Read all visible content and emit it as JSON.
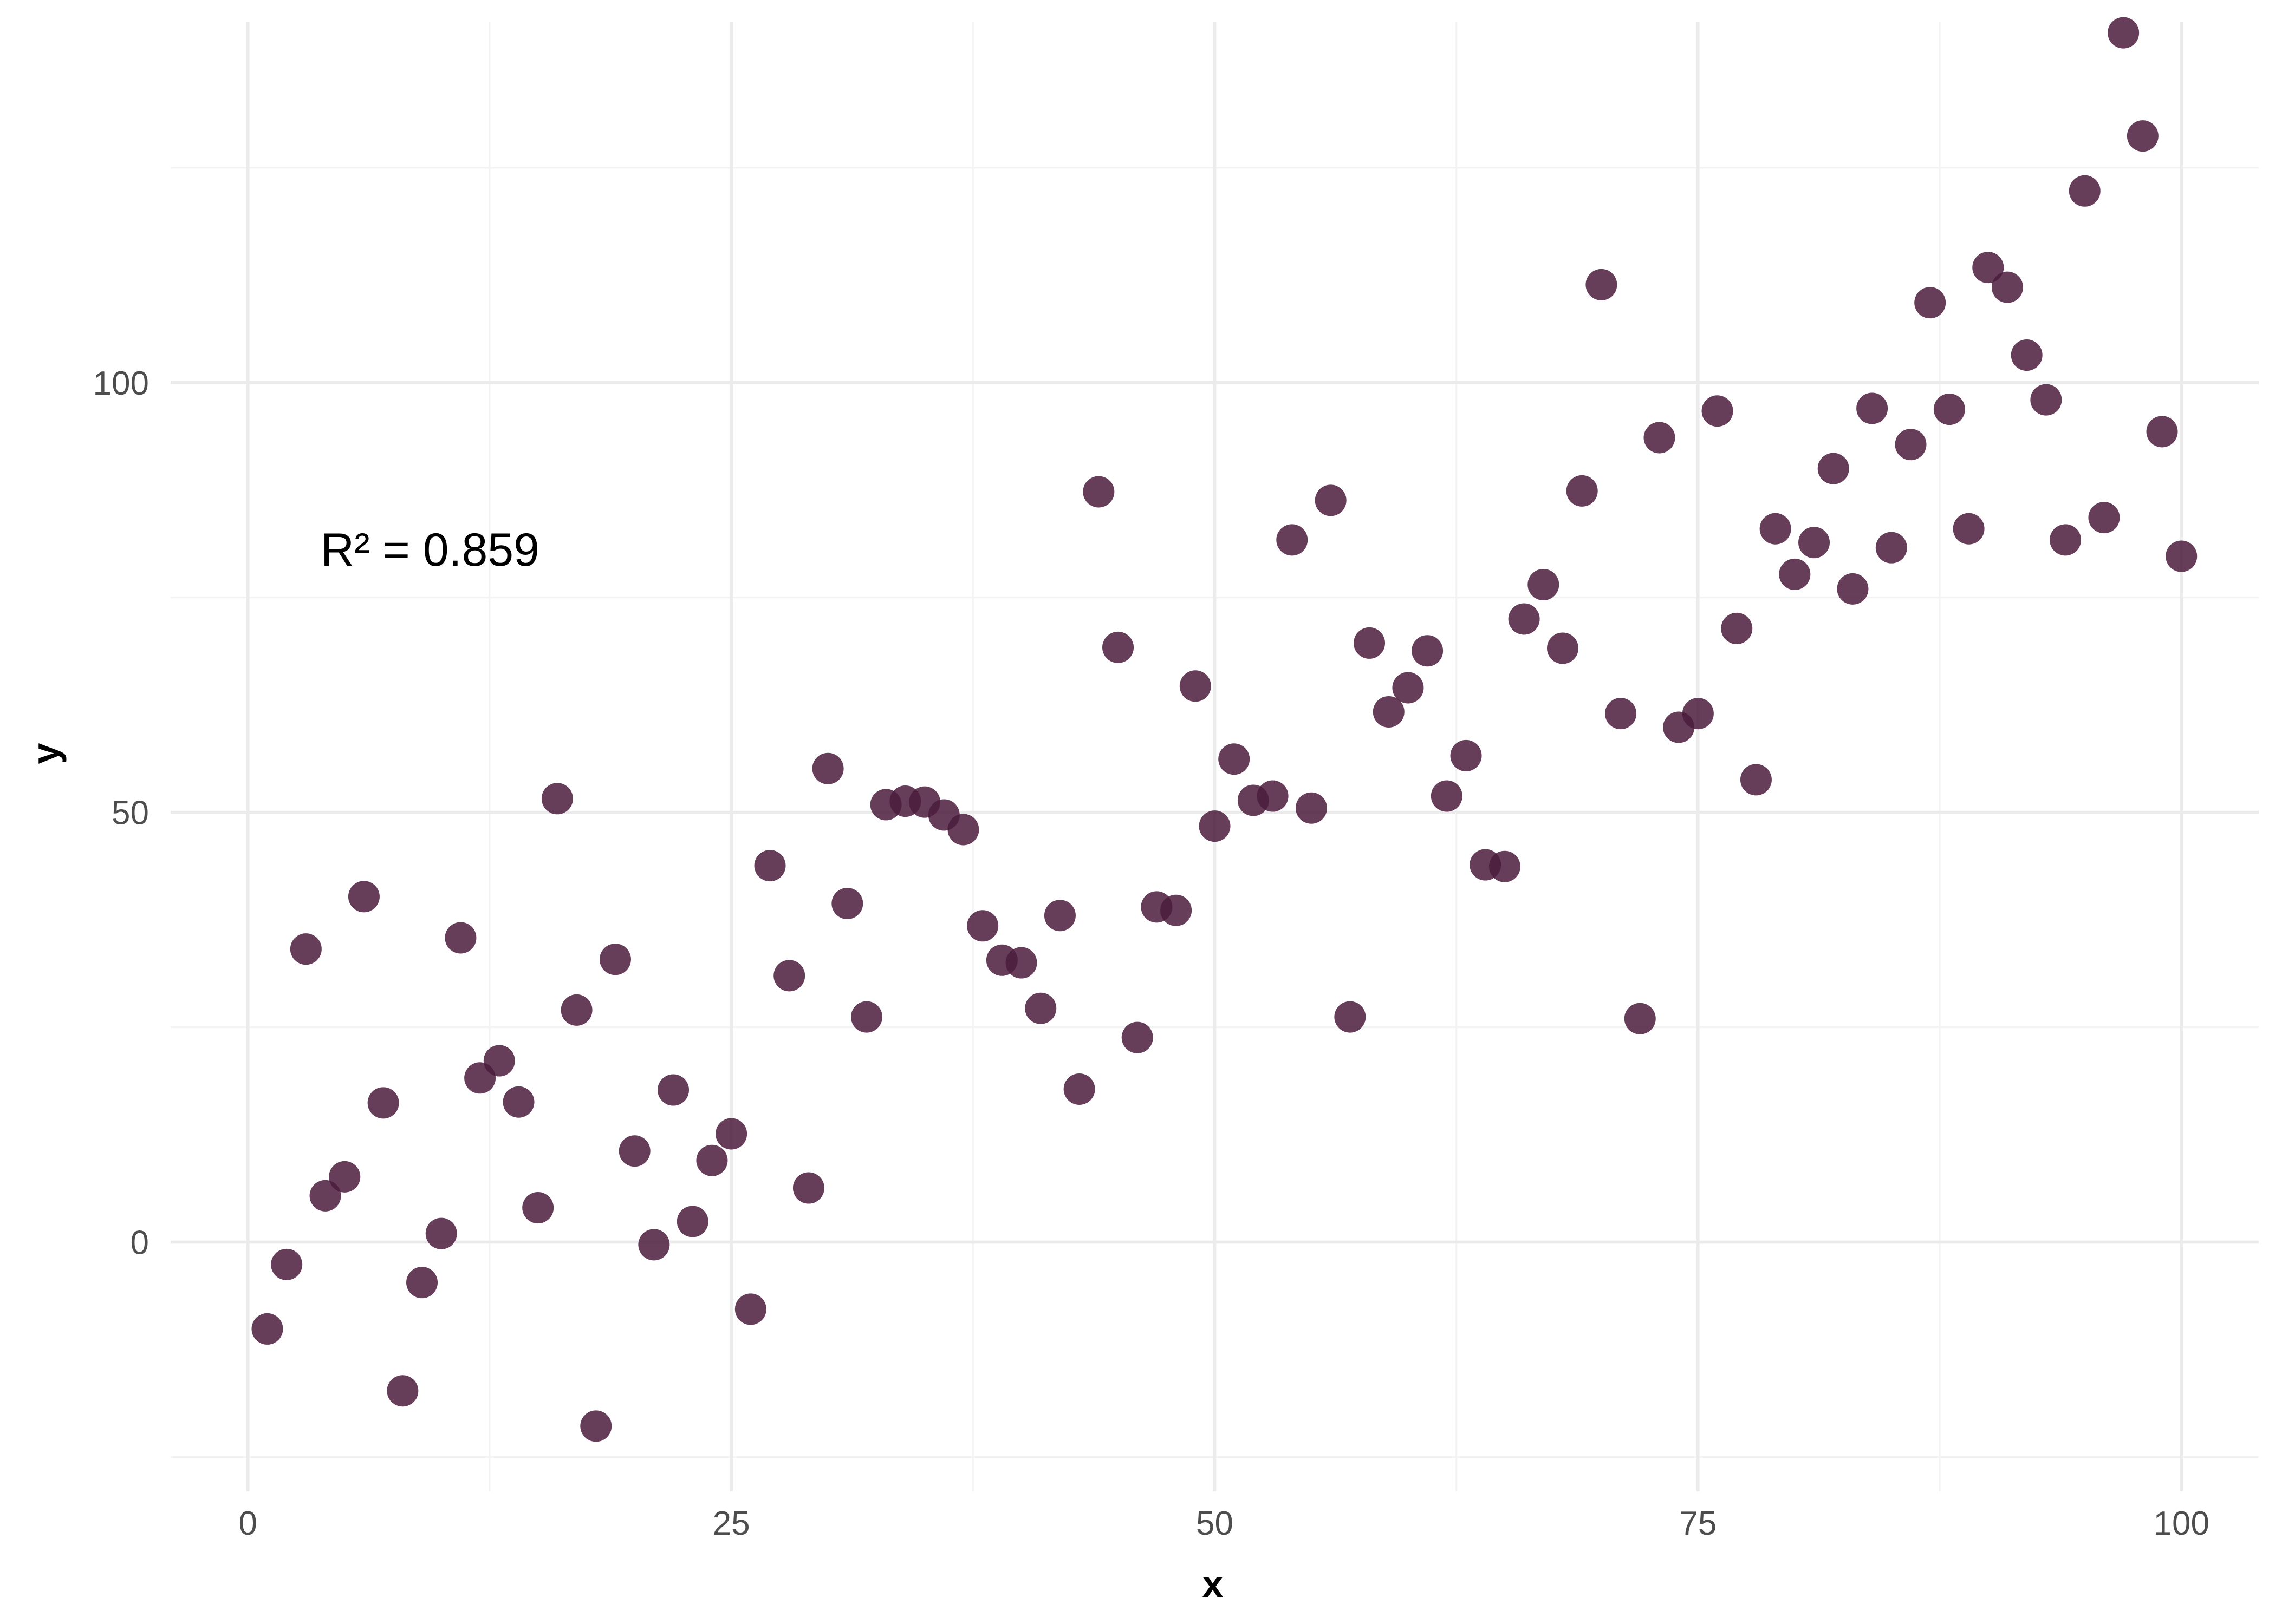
{
  "chart_data": {
    "type": "scatter",
    "xlabel": "x",
    "ylabel": "y",
    "xlim": [
      -4,
      104
    ],
    "ylim": [
      -29,
      142
    ],
    "x_ticks": [
      0,
      25,
      50,
      75,
      100
    ],
    "y_ticks": [
      0,
      50,
      100
    ],
    "x_tick_labels": [
      "0",
      "25",
      "50",
      "75",
      "100"
    ],
    "y_tick_labels": [
      "0",
      "50",
      "100"
    ],
    "x_minor_ticks": [
      12.5,
      37.5,
      62.5,
      87.5
    ],
    "y_minor_ticks": [
      -25,
      25,
      75,
      125
    ],
    "grid": true,
    "annotation": "R² = 0.859",
    "point_color": "#4B1C3D",
    "point_opacity": 0.85,
    "x": [
      1,
      2,
      3,
      4,
      5,
      6,
      7,
      8,
      9,
      10,
      11,
      12,
      13,
      14,
      15,
      16,
      17,
      18,
      19,
      20,
      21,
      22,
      23,
      24,
      25,
      26,
      27,
      28,
      29,
      30,
      31,
      32,
      33,
      34,
      35,
      36,
      37,
      38,
      39,
      40,
      41,
      42,
      43,
      44,
      45,
      46,
      47,
      48,
      49,
      50,
      51,
      52,
      53,
      54,
      55,
      56,
      57,
      58,
      59,
      60,
      61,
      62,
      63,
      64,
      65,
      66,
      67,
      68,
      69,
      70,
      71,
      72,
      73,
      74,
      75,
      76,
      77,
      78,
      79,
      80,
      81,
      82,
      83,
      84,
      85,
      86,
      87,
      88,
      89,
      90,
      91,
      92,
      93,
      94,
      95,
      96,
      97,
      98,
      99,
      100
    ],
    "y": [
      -10.1,
      -2.6,
      34.1,
      5.4,
      7.6,
      40.2,
      16.2,
      -17.3,
      -4.7,
      1.0,
      35.4,
      19.1,
      21.1,
      16.3,
      4.0,
      51.6,
      27.0,
      -21.4,
      32.9,
      10.6,
      -0.3,
      17.7,
      2.4,
      9.5,
      12.6,
      -7.8,
      43.8,
      31.0,
      6.3,
      55.1,
      39.4,
      26.2,
      50.9,
      51.3,
      51.2,
      49.7,
      48.0,
      36.8,
      32.8,
      32.5,
      27.2,
      38.0,
      17.8,
      87.3,
      69.2,
      23.8,
      39.0,
      38.6,
      64.7,
      48.4,
      56.2,
      51.4,
      51.9,
      81.7,
      50.5,
      86.3,
      26.2,
      69.7,
      61.7,
      64.5,
      68.8,
      51.9,
      56.6,
      43.9,
      43.7,
      72.5,
      76.5,
      69.1,
      87.4,
      111.4,
      61.5,
      26.0,
      93.6,
      59.9,
      61.5,
      96.7,
      71.4,
      53.8,
      83.0,
      77.7,
      81.4,
      90.0,
      76.0,
      97.0,
      80.8,
      92.8,
      109.3,
      96.9,
      83.0,
      113.4,
      111.1,
      103.2,
      98.0,
      81.7,
      122.3,
      84.3,
      140.7,
      128.7,
      94.3,
      79.8
    ]
  }
}
